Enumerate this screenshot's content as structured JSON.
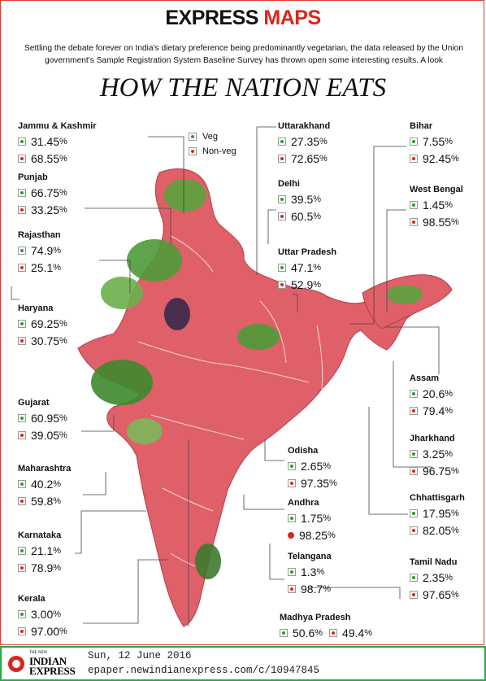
{
  "brand": {
    "part1": "EXPRESS",
    "part2": "MAPS"
  },
  "intro": "Settling the debate forever on India's dietary preference being predominantly vegetarian, the data released by the Union government's Sample Registration System Baseline Survey has thrown open some interesting results. A look",
  "headline": "HOW THE NATION EATS",
  "legend": {
    "veg": "Veg",
    "nonveg": "Non-veg"
  },
  "colors": {
    "veg": "#2e9a2e",
    "nonveg": "#d9261c",
    "map": "#e0606a",
    "leaf": "#4f9a3a",
    "footer_border": "#2aa84a"
  },
  "states": {
    "jk": {
      "name": "Jammu & Kashmir",
      "veg": "31.45",
      "nonveg": "68.55"
    },
    "punjab": {
      "name": "Punjab",
      "veg": "66.75",
      "nonveg": "33.25"
    },
    "rajasthan": {
      "name": "Rajasthan",
      "veg": "74.9",
      "nonveg": "25.1"
    },
    "haryana": {
      "name": "Haryana",
      "veg": "69.25",
      "nonveg": "30.75"
    },
    "gujarat": {
      "name": "Gujarat",
      "veg": "60.95",
      "nonveg": "39.05"
    },
    "maharashtra": {
      "name": "Maharashtra",
      "veg": "40.2",
      "nonveg": "59.8"
    },
    "karnataka": {
      "name": "Karnataka",
      "veg": "21.1",
      "nonveg": "78.9"
    },
    "kerala": {
      "name": "Kerala",
      "veg": "3.00",
      "nonveg": "97.00"
    },
    "uttarakhand": {
      "name": "Uttarakhand",
      "veg": "27.35",
      "nonveg": "72.65"
    },
    "delhi": {
      "name": "Delhi",
      "veg": "39.5",
      "nonveg": "60.5"
    },
    "up": {
      "name": "Uttar Pradesh",
      "veg": "47.1",
      "nonveg": "52.9"
    },
    "bihar": {
      "name": "Bihar",
      "veg": "7.55",
      "nonveg": "92.45"
    },
    "wb": {
      "name": "West Bengal",
      "veg": "1.45",
      "nonveg": "98.55"
    },
    "assam": {
      "name": "Assam",
      "veg": "20.6",
      "nonveg": "79.4"
    },
    "jharkhand": {
      "name": "Jharkhand",
      "veg": "3.25",
      "nonveg": "96.75"
    },
    "chhattisgarh": {
      "name": "Chhattisgarh",
      "veg": "17.95",
      "nonveg": "82.05"
    },
    "tn": {
      "name": "Tamil Nadu",
      "veg": "2.35",
      "nonveg": "97.65"
    },
    "odisha": {
      "name": "Odisha",
      "veg": "2.65",
      "nonveg": "97.35"
    },
    "andhra": {
      "name": "Andhra",
      "veg": "1.75",
      "nonveg": "98.25"
    },
    "telangana": {
      "name": "Telangana",
      "veg": "1.3",
      "nonveg": "98.7"
    },
    "mp": {
      "name": "Madhya Pradesh",
      "veg": "50.6",
      "nonveg": "49.4"
    }
  },
  "footer": {
    "logo_small": "THE NEW",
    "logo_line1": "INDIAN",
    "logo_line2": "EXPRESS",
    "date": "Sun, 12 June 2016",
    "url": "epaper.newindianexpress.com/c/10947845"
  }
}
